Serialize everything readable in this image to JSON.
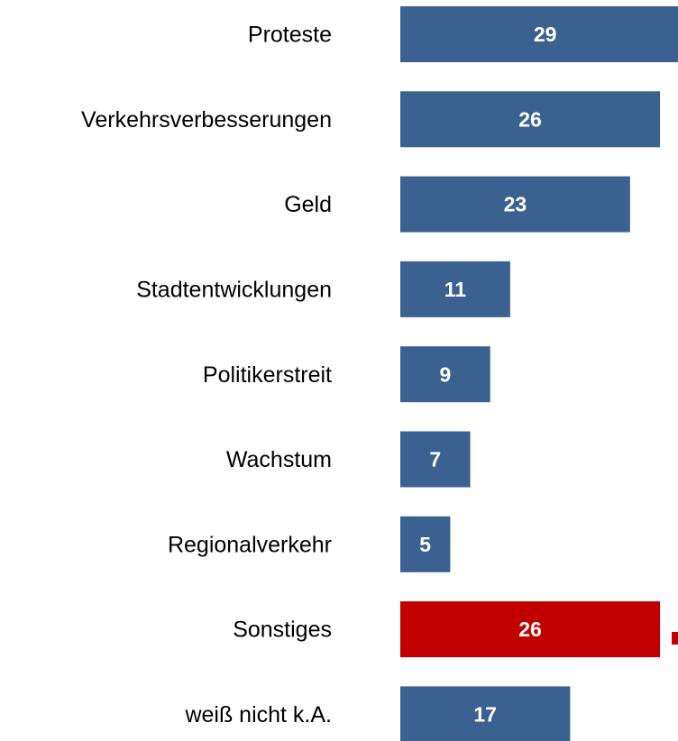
{
  "chart_data": {
    "type": "hbar",
    "categories": [
      "Proteste",
      "Verkehrsverbesserungen",
      "Geld",
      "Stadtentwicklungen",
      "Politikerstreit",
      "Wachstum",
      "Regionalverkehr",
      "Sonstiges",
      "weiß nicht k.A."
    ],
    "values": [
      29,
      26,
      23,
      11,
      9,
      7,
      5,
      26,
      17
    ],
    "colors": [
      "#3a6190",
      "#3a6190",
      "#3a6190",
      "#3a6190",
      "#3a6190",
      "#3a6190",
      "#3a6190",
      "#c00000",
      "#3a6190"
    ]
  }
}
